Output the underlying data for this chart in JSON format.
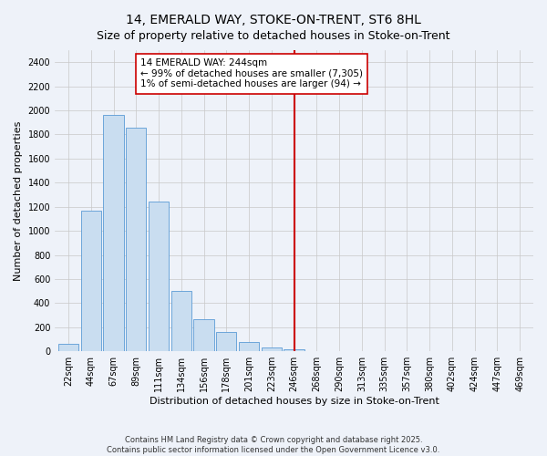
{
  "title": "14, EMERALD WAY, STOKE-ON-TRENT, ST6 8HL",
  "subtitle": "Size of property relative to detached houses in Stoke-on-Trent",
  "xlabel": "Distribution of detached houses by size in Stoke-on-Trent",
  "ylabel": "Number of detached properties",
  "categories": [
    "22sqm",
    "44sqm",
    "67sqm",
    "89sqm",
    "111sqm",
    "134sqm",
    "156sqm",
    "178sqm",
    "201sqm",
    "223sqm",
    "246sqm",
    "268sqm",
    "290sqm",
    "313sqm",
    "335sqm",
    "357sqm",
    "380sqm",
    "402sqm",
    "424sqm",
    "447sqm",
    "469sqm"
  ],
  "values": [
    60,
    1165,
    1960,
    1860,
    1240,
    500,
    270,
    160,
    80,
    30,
    20,
    0,
    0,
    0,
    0,
    0,
    0,
    0,
    0,
    0,
    0
  ],
  "bar_color": "#c9ddf0",
  "bar_edge_color": "#5b9bd5",
  "vline_x": 10,
  "vline_color": "#cc0000",
  "annotation_text": "14 EMERALD WAY: 244sqm\n← 99% of detached houses are smaller (7,305)\n1% of semi-detached houses are larger (94) →",
  "annotation_box_color": "#ffffff",
  "annotation_box_edge": "#cc0000",
  "ylim": [
    0,
    2500
  ],
  "yticks": [
    0,
    200,
    400,
    600,
    800,
    1000,
    1200,
    1400,
    1600,
    1800,
    2000,
    2200,
    2400
  ],
  "footer_line1": "Contains HM Land Registry data © Crown copyright and database right 2025.",
  "footer_line2": "Contains public sector information licensed under the Open Government Licence v3.0.",
  "bg_color": "#eef2f9",
  "grid_color": "#c8c8c8",
  "title_fontsize": 10,
  "axis_label_fontsize": 8,
  "tick_fontsize": 7,
  "annotation_fontsize": 7.5,
  "footer_fontsize": 6
}
